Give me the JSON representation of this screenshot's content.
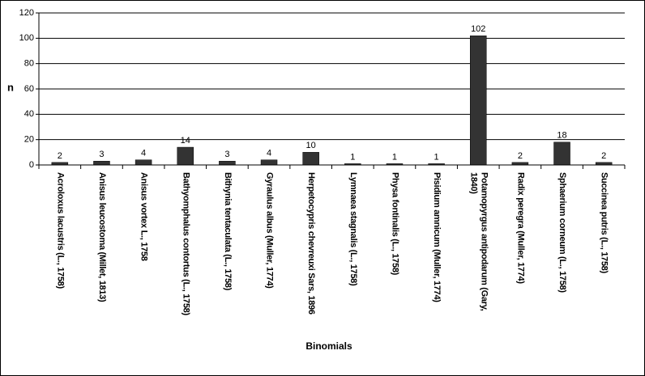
{
  "chart_data": {
    "type": "bar",
    "x_label": "Binomials",
    "y_label": "n",
    "categories": [
      "Acroloxus lacustris (L., 1758)",
      "Anisus leucostoma (Millet, 1813)",
      "Anisus vortex L., 1758",
      "Bathyomphalus contortus (L., 1758)",
      "Bithynia tentaculata (L., 1758)",
      "Gyraulus albus (Muller, 1774)",
      "Herpetocypris chevreuxi Sars, 1896",
      "Lymnaea stagnalis (L., 1758)",
      "Physa fontinalis (L., 1758)",
      "Pisidium amnicum (Muller, 1774)",
      "Potamopyrgus antipodarum (Gary, 1840)",
      "Radix peregra (Muller, 1774)",
      "Sphaerium corneum (L., 1758)",
      "Succinea putris (L., 1758)"
    ],
    "values": [
      2,
      3,
      4,
      14,
      3,
      4,
      10,
      1,
      1,
      1,
      102,
      2,
      18,
      2
    ],
    "color": "#333333",
    "ylim": [
      0,
      120
    ],
    "yticks": [
      0,
      20,
      40,
      60,
      80,
      100,
      120
    ],
    "grid": true
  }
}
